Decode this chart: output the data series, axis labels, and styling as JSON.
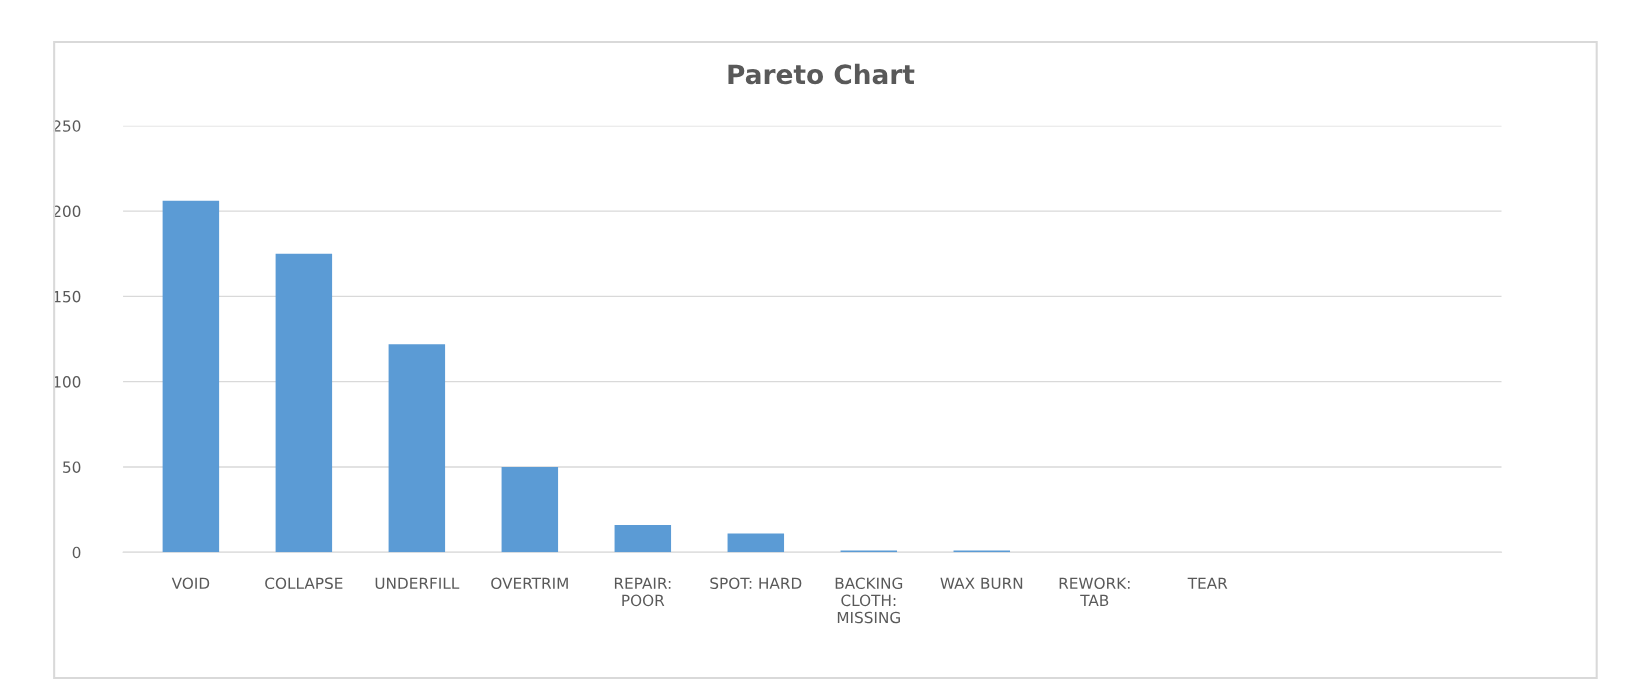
{
  "chart_data": {
    "type": "bar",
    "title": "Pareto Chart",
    "categories": [
      "VOID",
      "COLLAPSE",
      "UNDERFILL",
      "OVERTRIM",
      "REPAIR:\nPOOR",
      "SPOT: HARD",
      "BACKING\nCLOTH:\nMISSING",
      "WAX BURN",
      "REWORK:\nTAB",
      "TEAR",
      null,
      null
    ],
    "values": [
      206,
      175,
      122,
      50,
      16,
      11,
      1,
      1,
      0,
      0,
      0,
      0
    ],
    "color": "#5b9bd5",
    "ylim": [
      0,
      250
    ],
    "yticks": [
      0,
      50,
      100,
      150,
      200,
      250
    ],
    "grid": "y",
    "legend": false
  }
}
